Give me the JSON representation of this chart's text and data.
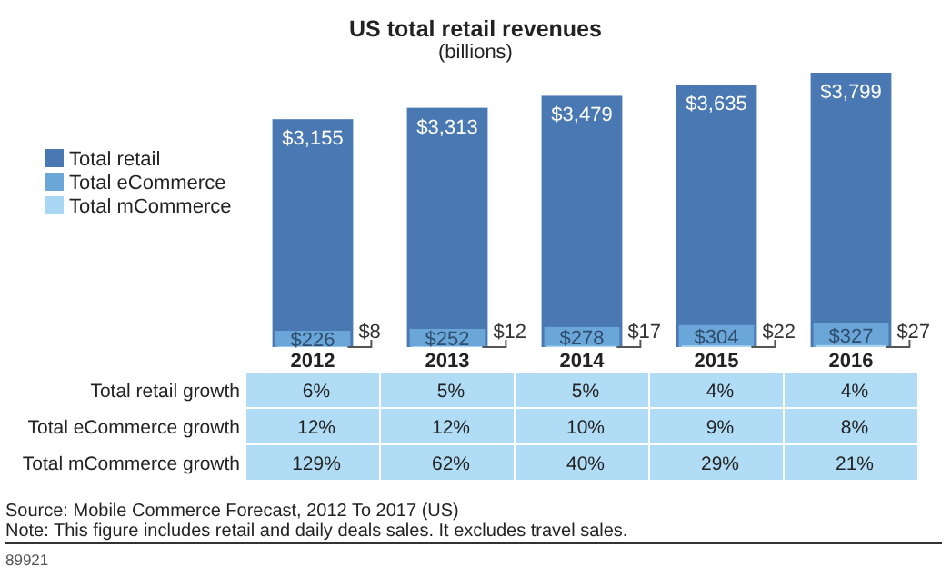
{
  "chart_data": [
    {
      "type": "bar",
      "title": "US total retail revenues",
      "subtitle": "(billions)",
      "categories": [
        "2012",
        "2013",
        "2014",
        "2015",
        "2016"
      ],
      "series": [
        {
          "name": "Total retail",
          "color": "#4a78b2",
          "values": [
            3155,
            3313,
            3479,
            3635,
            3799
          ],
          "value_labels": [
            "$3,155",
            "$3,313",
            "$3,479",
            "$3,635",
            "$3,799"
          ]
        },
        {
          "name": "Total eCommerce",
          "color": "#6ba6d8",
          "values": [
            226,
            252,
            278,
            304,
            327
          ],
          "value_labels": [
            "$226",
            "$252",
            "$278",
            "$304",
            "$327"
          ]
        },
        {
          "name": "Total mCommerce",
          "color": "#a9d6f3",
          "values": [
            8,
            12,
            17,
            22,
            27
          ],
          "value_labels": [
            "$8",
            "$12",
            "$17",
            "$22",
            "$27"
          ]
        }
      ],
      "legend": "left"
    },
    {
      "type": "other",
      "y_categories": [
        "Total retail growth",
        "Total eCommerce growth",
        "Total mCommerce growth"
      ],
      "cell_labels": [
        [
          "6%",
          "5%",
          "5%",
          "4%",
          "4%"
        ],
        [
          "12%",
          "12%",
          "10%",
          "9%",
          "8%"
        ],
        [
          "129%",
          "62%",
          "40%",
          "29%",
          "21%"
        ]
      ],
      "annotations": [
        "Source: Mobile Commerce Forecast, 2012 To 2017 (US)",
        "Note: This figure includes retail and daily deals sales. It excludes travel sales.",
        "89921"
      ]
    }
  ]
}
